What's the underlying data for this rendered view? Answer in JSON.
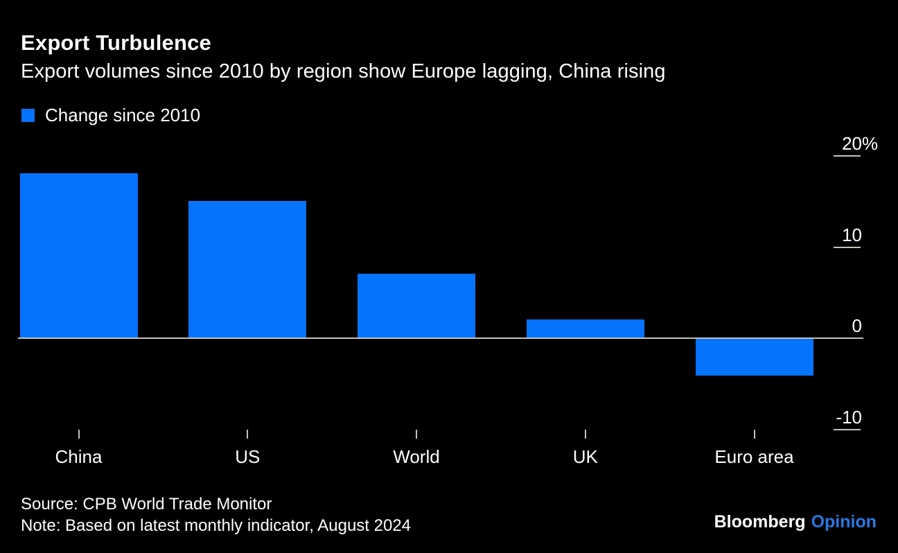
{
  "colors": {
    "background": "#000000",
    "text": "#FFFFFF",
    "bar": "#0673FC",
    "axis": "#C7C2B8",
    "accent": "#2A77E0"
  },
  "chart_data": {
    "type": "bar",
    "title": "Export Turbulence",
    "subtitle": "Export volumes since 2010 by region show Europe lagging, China rising",
    "legend": [
      "Change since 2010"
    ],
    "legend_position": "top-left",
    "categories": [
      "China",
      "US",
      "World",
      "UK",
      "Euro area"
    ],
    "values": [
      18,
      15,
      7,
      2,
      -4
    ],
    "unit": "%",
    "ylabel": "",
    "xlabel": "",
    "ylim": [
      -13,
      23
    ],
    "grid": false,
    "yticks": {
      "values": [
        20,
        10,
        0,
        -10
      ],
      "labels": [
        "20%",
        "10",
        "0",
        "-10"
      ]
    }
  },
  "footer": {
    "source": "Source: CPB World Trade Monitor",
    "note": "Note: Based on latest monthly indicator, August 2024",
    "brand": [
      "Bloomberg",
      "Opinion"
    ]
  }
}
